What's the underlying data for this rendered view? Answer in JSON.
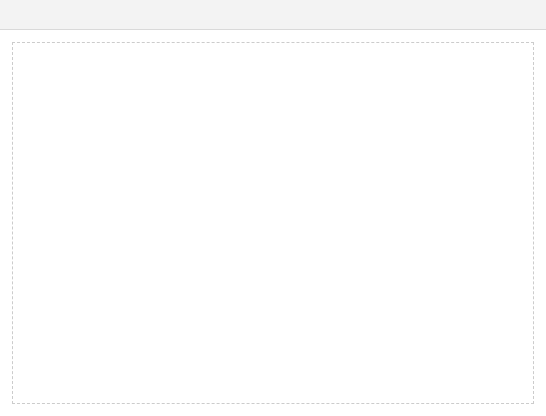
{
  "window": {
    "title": ""
  },
  "main": {
    "message": ""
  }
}
